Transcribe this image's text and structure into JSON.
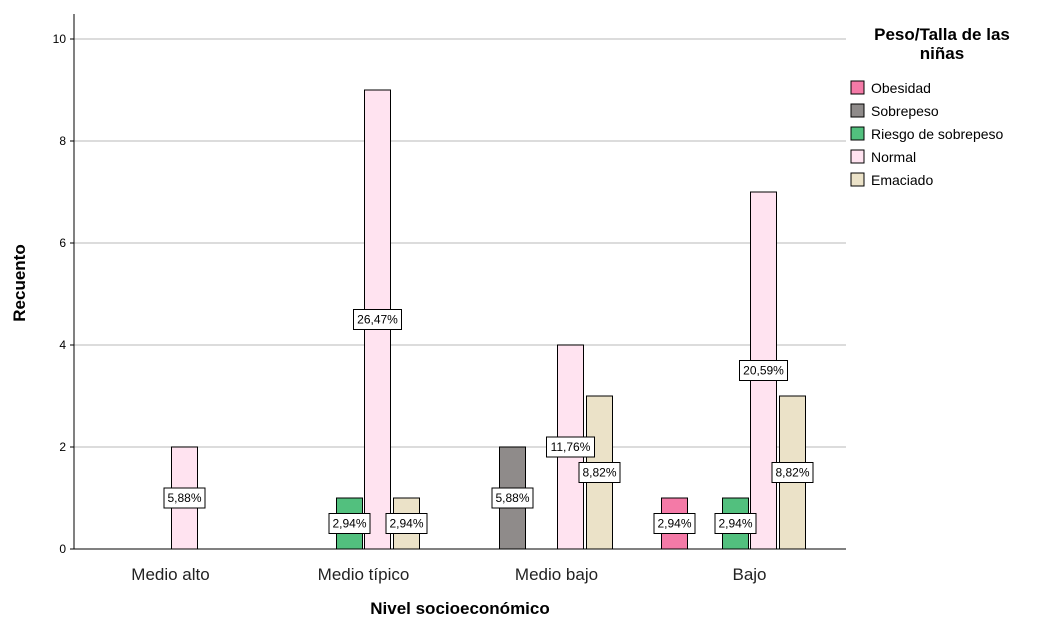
{
  "chart_data": {
    "type": "bar",
    "xlabel": "Nivel socioeconómico",
    "ylabel": "Recuento",
    "ylim": [
      0,
      10.5
    ],
    "yticks": [
      "0",
      "2",
      "4",
      "6",
      "8",
      "10"
    ],
    "grid": true,
    "legend_placement": "top-right",
    "legend_title_lines": [
      "Peso/Talla de las",
      "niñas"
    ],
    "categories": [
      "Medio alto",
      "Medio típico",
      "Medio bajo",
      "Bajo"
    ],
    "series": [
      {
        "name": "Obesidad",
        "color": "#f47aa7",
        "values": [
          0,
          0,
          0,
          1
        ],
        "labels": [
          "",
          "",
          "",
          "2,94%"
        ]
      },
      {
        "name": "Sobrepeso",
        "color": "#8f8b8a",
        "values": [
          0,
          0,
          2,
          0
        ],
        "labels": [
          "",
          "",
          "5,88%",
          ""
        ]
      },
      {
        "name": "Riesgo de sobrepeso",
        "color": "#52c07e",
        "values": [
          0,
          1,
          0,
          1
        ],
        "labels": [
          "",
          "2,94%",
          "",
          "2,94%"
        ]
      },
      {
        "name": "Normal",
        "color": "#ffe3f0",
        "values": [
          2,
          9,
          4,
          7
        ],
        "labels": [
          "5,88%",
          "26,47%",
          "11,76%",
          "20,59%"
        ]
      },
      {
        "name": "Emaciado",
        "color": "#ebe2c8",
        "values": [
          0,
          1,
          3,
          3
        ],
        "labels": [
          "",
          "2,94%",
          "8,82%",
          "8,82%"
        ]
      }
    ]
  }
}
